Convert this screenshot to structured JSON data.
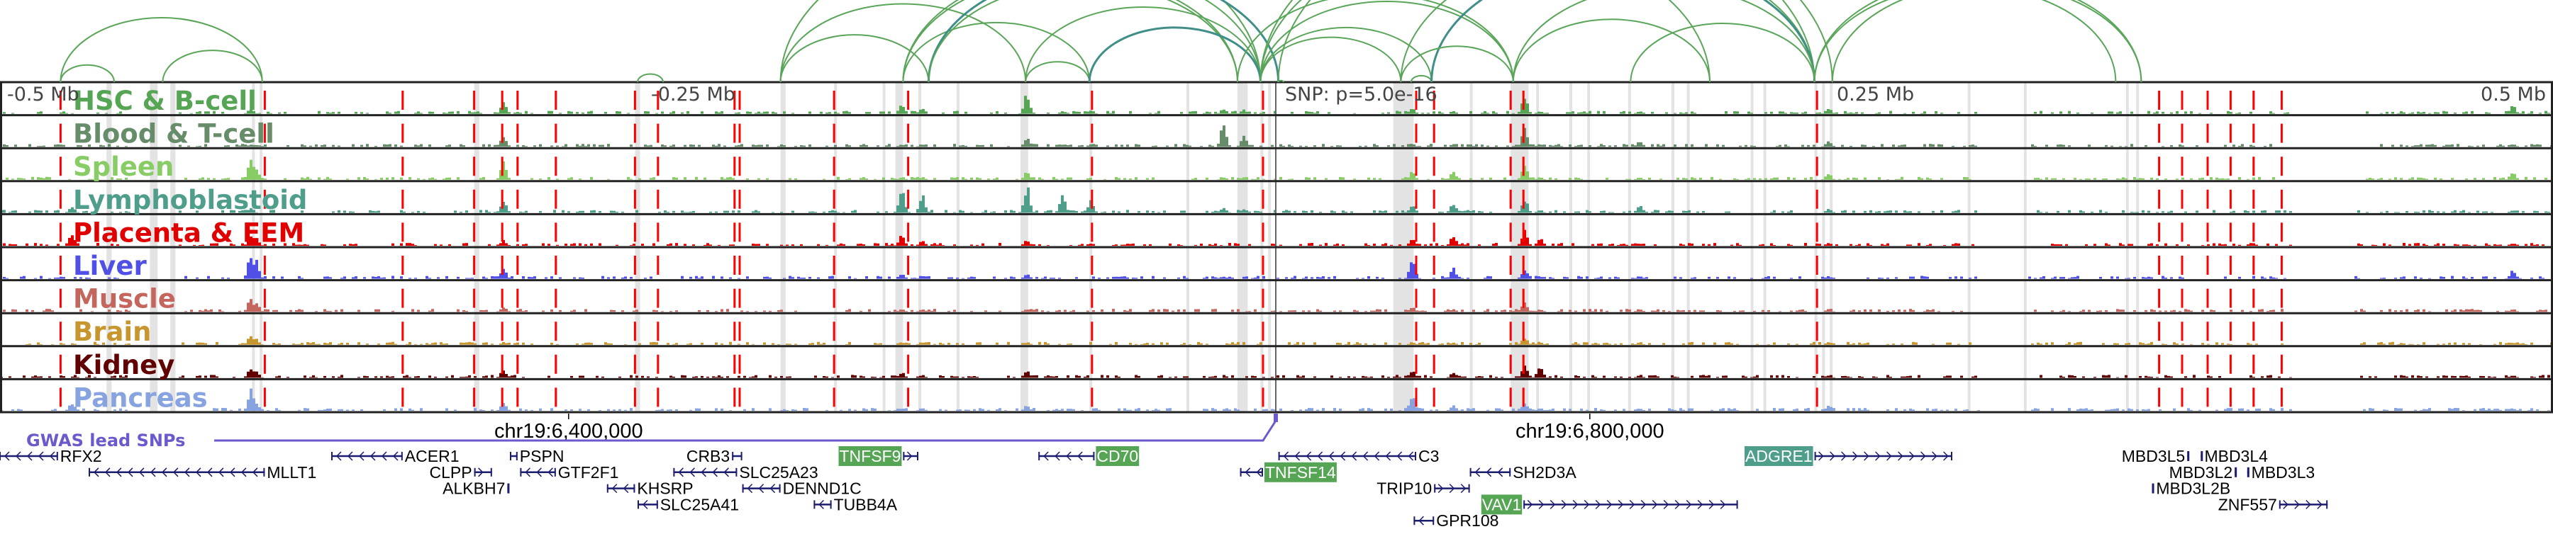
{
  "axis": {
    "left_label": "-0.5 Mb",
    "left_mid_label": "-0.25 Mb",
    "snp_label": "SNP: p=5.0e-16",
    "right_mid_label": "0.25 Mb",
    "right_label": "0.5 Mb"
  },
  "coordinates": [
    {
      "label": "chr19:6,400,000",
      "kb": -277
    },
    {
      "label": "chr19:6,800,000",
      "kb": 123
    }
  ],
  "gwas": {
    "label": "GWAS lead SNPs",
    "color": "#6a5acd",
    "snp_kb": 0
  },
  "tracks": [
    {
      "label": "HSC & B-cell",
      "color": "#55a555"
    },
    {
      "label": "Blood & T-cell",
      "color": "#678c6a"
    },
    {
      "label": "Spleen",
      "color": "#88cc66"
    },
    {
      "label": "Lymphoblastoid",
      "color": "#4f9e8c"
    },
    {
      "label": "Placenta & EEM",
      "color": "#e00000"
    },
    {
      "label": "Liver",
      "color": "#5050e6"
    },
    {
      "label": "Muscle",
      "color": "#c4665e"
    },
    {
      "label": "Brain",
      "color": "#c8962e"
    },
    {
      "label": "Kidney",
      "color": "#600000"
    },
    {
      "label": "Pancreas",
      "color": "#88a4e0"
    }
  ],
  "peaks": [
    {
      "kb": -472,
      "h": [
        0,
        0,
        0,
        0.25,
        0.5,
        0,
        0,
        0,
        0,
        0.3
      ]
    },
    {
      "kb": -402,
      "h": [
        0.2,
        0.1,
        0.9,
        0.2,
        0.35,
        1.0,
        0.55,
        0.35,
        0.4,
        0.8
      ]
    },
    {
      "kb": -400,
      "h": [
        0,
        0,
        0.5,
        0,
        0.3,
        0.7,
        0.4,
        0.25,
        0.3,
        0.3
      ]
    },
    {
      "kb": -303,
      "h": [
        0.45,
        0.4,
        0.65,
        0.45,
        0.2,
        0.4,
        0.2,
        0.1,
        0.3,
        0.3
      ]
    },
    {
      "kb": -147,
      "h": [
        0.35,
        0.1,
        0.1,
        0.95,
        0.4,
        0.2,
        0.1,
        0.1,
        0.2,
        0.1
      ]
    },
    {
      "kb": -139,
      "h": [
        0.25,
        0.1,
        0.1,
        0.65,
        0.2,
        0.1,
        0.1,
        0.1,
        0.1,
        0.1
      ]
    },
    {
      "kb": -98,
      "h": [
        0.75,
        0.35,
        0.3,
        1.0,
        0.2,
        0.2,
        0.1,
        0.1,
        0.3,
        0.2
      ]
    },
    {
      "kb": -84,
      "h": [
        0.1,
        0.1,
        0,
        0.7,
        0,
        0,
        0,
        0,
        0,
        0
      ]
    },
    {
      "kb": -73,
      "h": [
        0.15,
        0.1,
        0,
        0.45,
        0.1,
        0,
        0,
        0,
        0,
        0
      ]
    },
    {
      "kb": -21,
      "h": [
        0.2,
        0.85,
        0.1,
        0.2,
        0,
        0,
        0,
        0,
        0,
        0
      ]
    },
    {
      "kb": -13,
      "h": [
        0.15,
        0.45,
        0.1,
        0.15,
        0,
        0,
        0,
        0,
        0,
        0
      ]
    },
    {
      "kb": 53,
      "h": [
        0.2,
        0.1,
        0.3,
        0.3,
        0.3,
        0.8,
        0.2,
        0.1,
        0.3,
        0.6
      ]
    },
    {
      "kb": 69,
      "h": [
        0.1,
        0.1,
        0.3,
        0.35,
        0.4,
        0.4,
        0.1,
        0.1,
        0.2,
        0.2
      ]
    },
    {
      "kb": 97,
      "h": [
        0.65,
        0.75,
        0.65,
        0.55,
        0.6,
        0.4,
        0.35,
        0.3,
        0.55,
        0.3
      ]
    },
    {
      "kb": 103,
      "h": [
        0.1,
        0.1,
        0.1,
        0.1,
        0.3,
        0.1,
        0.1,
        0.1,
        0.5,
        0.1
      ]
    },
    {
      "kb": 142,
      "h": [
        0.1,
        0.2,
        0.1,
        0.3,
        0.1,
        0.1,
        0.1,
        0.1,
        0.1,
        0.1
      ]
    },
    {
      "kb": 216,
      "h": [
        0.2,
        0.2,
        0.25,
        0.15,
        0.1,
        0.1,
        0.1,
        0.1,
        0.1,
        0.2
      ]
    },
    {
      "kb": 484,
      "h": [
        0.3,
        0.1,
        0.3,
        0.1,
        0.1,
        0.3,
        0.1,
        0.1,
        0.1,
        0.1
      ]
    }
  ],
  "red_lines_kb": [
    -476,
    -396,
    -342,
    -314,
    -303,
    -297,
    -282,
    -251,
    -242,
    -212,
    -210,
    -173,
    -144,
    -72,
    -5,
    55,
    62,
    92,
    97,
    212,
    346,
    355,
    365,
    374,
    383,
    394
  ],
  "gray_bands_kb": [
    [
      -458,
      -456
    ],
    [
      -441,
      -438
    ],
    [
      -433,
      -431
    ],
    [
      -401,
      -400
    ],
    [
      -398,
      -397
    ],
    [
      -314,
      -312
    ],
    [
      -251,
      -249
    ],
    [
      -194,
      -192
    ],
    [
      -173,
      -172
    ],
    [
      -154,
      -153
    ],
    [
      -149,
      -146
    ],
    [
      -140,
      -139
    ],
    [
      -125,
      -124
    ],
    [
      -100,
      -97
    ],
    [
      -73,
      -72
    ],
    [
      -35,
      -34
    ],
    [
      -15,
      -11
    ],
    [
      -6,
      -5
    ],
    [
      -3,
      -2
    ],
    [
      46,
      54
    ],
    [
      76,
      77
    ],
    [
      92,
      99
    ],
    [
      102,
      103
    ],
    [
      115,
      116
    ],
    [
      122,
      123
    ],
    [
      138,
      139
    ],
    [
      155,
      156
    ],
    [
      161,
      162
    ],
    [
      186,
      187
    ],
    [
      191,
      192
    ],
    [
      211,
      212
    ],
    [
      214,
      215
    ],
    [
      217,
      218
    ],
    [
      271,
      272
    ],
    [
      293,
      294
    ],
    [
      333,
      334
    ],
    [
      337,
      338
    ]
  ],
  "arcs": [
    {
      "a": -476,
      "b": -397,
      "teal": false
    },
    {
      "a": -476,
      "b": -455,
      "teal": false
    },
    {
      "a": -436,
      "b": -397,
      "teal": false
    },
    {
      "a": -250,
      "b": -240,
      "teal": false
    },
    {
      "a": -194,
      "b": -98,
      "teal": false
    },
    {
      "a": -194,
      "b": -136,
      "teal": false
    },
    {
      "a": -194,
      "b": -6,
      "teal": false
    },
    {
      "a": -146,
      "b": -73,
      "teal": false
    },
    {
      "a": -146,
      "b": -6,
      "teal": false
    },
    {
      "a": -146,
      "b": -15,
      "teal": false
    },
    {
      "a": -136,
      "b": 1,
      "teal": true
    },
    {
      "a": -136,
      "b": -15,
      "teal": false
    },
    {
      "a": -98,
      "b": -6,
      "teal": false
    },
    {
      "a": -98,
      "b": -73,
      "teal": false
    },
    {
      "a": -73,
      "b": -6,
      "teal": true
    },
    {
      "a": -15,
      "b": 93,
      "teal": false
    },
    {
      "a": -6,
      "b": 93,
      "teal": false
    },
    {
      "a": -6,
      "b": 61,
      "teal": false
    },
    {
      "a": -6,
      "b": 49,
      "teal": false
    },
    {
      "a": 1,
      "b": 3,
      "teal": false
    },
    {
      "a": 1,
      "b": 218,
      "teal": false
    },
    {
      "a": -6,
      "b": 211,
      "teal": false
    },
    {
      "a": -6,
      "b": 170,
      "teal": false
    },
    {
      "a": 49,
      "b": 211,
      "teal": false
    },
    {
      "a": 53,
      "b": 61,
      "teal": false
    },
    {
      "a": 61,
      "b": 211,
      "teal": true
    },
    {
      "a": 49,
      "b": 93,
      "teal": false
    },
    {
      "a": 93,
      "b": 211,
      "teal": false
    },
    {
      "a": 93,
      "b": 170,
      "teal": false
    },
    {
      "a": 139,
      "b": 211,
      "teal": false
    },
    {
      "a": 211,
      "b": 329,
      "teal": false
    },
    {
      "a": 211,
      "b": 339,
      "teal": false
    },
    {
      "a": 218,
      "b": 339,
      "teal": false
    }
  ],
  "genes": [
    {
      "name": "RFX2",
      "start": -500,
      "end": -477,
      "strand": "-",
      "row": 1,
      "label_side": "right",
      "highlight": ""
    },
    {
      "name": "MLLT1",
      "start": -465,
      "end": -396,
      "strand": "-",
      "row": 2,
      "label_side": "right",
      "highlight": ""
    },
    {
      "name": "ACER1",
      "start": -370,
      "end": -342,
      "strand": "-",
      "row": 1,
      "label_side": "right",
      "highlight": ""
    },
    {
      "name": "CLPP",
      "start": -314,
      "end": -307,
      "strand": "+",
      "row": 2,
      "label_side": "left",
      "highlight": ""
    },
    {
      "name": "ALKBH7",
      "start": -301,
      "end": -300.5,
      "strand": "-",
      "row": 3,
      "label_side": "left",
      "highlight": ""
    },
    {
      "name": "PSPN",
      "start": -300,
      "end": -297,
      "strand": "-",
      "row": 1,
      "label_side": "right",
      "highlight": ""
    },
    {
      "name": "GTF2F1",
      "start": -296,
      "end": -282,
      "strand": "-",
      "row": 2,
      "label_side": "right",
      "highlight": ""
    },
    {
      "name": "KHSRP",
      "start": -262,
      "end": -251,
      "strand": "-",
      "row": 3,
      "label_side": "right",
      "highlight": ""
    },
    {
      "name": "SLC25A41",
      "start": -250,
      "end": -242,
      "strand": "-",
      "row": 4,
      "label_side": "right",
      "highlight": ""
    },
    {
      "name": "CRB3",
      "start": -213,
      "end": -209,
      "strand": "+",
      "row": 1,
      "label_side": "left",
      "highlight": ""
    },
    {
      "name": "SLC25A23",
      "start": -236,
      "end": -211,
      "strand": "-",
      "row": 2,
      "label_side": "right",
      "highlight": ""
    },
    {
      "name": "DENND1C",
      "start": -209,
      "end": -194,
      "strand": "-",
      "row": 3,
      "label_side": "right",
      "highlight": ""
    },
    {
      "name": "TUBB4A",
      "start": -181,
      "end": -174,
      "strand": "-",
      "row": 4,
      "label_side": "right",
      "highlight": ""
    },
    {
      "name": "TNFSF9",
      "start": -146,
      "end": -140,
      "strand": "+",
      "row": 1,
      "label_side": "left",
      "highlight": "#55a555"
    },
    {
      "name": "CD70",
      "start": -93,
      "end": -71,
      "strand": "-",
      "row": 1,
      "label_side": "right",
      "highlight": "#55a555"
    },
    {
      "name": "C3",
      "start": 1,
      "end": 55,
      "strand": "-",
      "row": 1,
      "label_side": "right",
      "highlight": ""
    },
    {
      "name": "TNFSF14",
      "start": -14,
      "end": -5,
      "strand": "-",
      "row": 2,
      "label_side": "right",
      "highlight": "#55a555"
    },
    {
      "name": "SH2D3A",
      "start": 76,
      "end": 92,
      "strand": "-",
      "row": 2,
      "label_side": "right",
      "highlight": ""
    },
    {
      "name": "TRIP10",
      "start": 62,
      "end": 76,
      "strand": "+",
      "row": 3,
      "label_side": "left",
      "highlight": ""
    },
    {
      "name": "VAV1",
      "start": 97,
      "end": 181,
      "strand": "+",
      "row": 4,
      "label_side": "left",
      "highlight": "#55a555"
    },
    {
      "name": "GPR108",
      "start": 54,
      "end": 62,
      "strand": "-",
      "row": 5,
      "label_side": "right",
      "highlight": ""
    },
    {
      "name": "ADGRE1",
      "start": 211,
      "end": 265,
      "strand": "+",
      "row": 1,
      "label_side": "left",
      "highlight": "#4f9e8c"
    },
    {
      "name": "MBD3L5",
      "start": 357,
      "end": 357.6,
      "strand": "-",
      "row": 1,
      "label_side": "left",
      "highlight": ""
    },
    {
      "name": "MBD3L4",
      "start": 362.3,
      "end": 362.9,
      "strand": "-",
      "row": 1,
      "label_side": "right",
      "highlight": ""
    },
    {
      "name": "MBD3L2",
      "start": 375.6,
      "end": 376.2,
      "strand": "-",
      "row": 2,
      "label_side": "left",
      "highlight": ""
    },
    {
      "name": "MBD3L3",
      "start": 380.5,
      "end": 381.3,
      "strand": "-",
      "row": 2,
      "label_side": "right",
      "highlight": ""
    },
    {
      "name": "MBD3L2B",
      "start": 343.2,
      "end": 344,
      "strand": "-",
      "row": 3,
      "label_side": "right",
      "highlight": ""
    },
    {
      "name": "ZNF557",
      "start": 393,
      "end": 412,
      "strand": "+",
      "row": 4,
      "label_side": "left",
      "highlight": ""
    }
  ],
  "colors": {
    "red_line": "#ff0000",
    "gray_band": "#e3e3e3",
    "arc": "#5aa55a",
    "arc_teal": "#3f8f88",
    "gene": "#1c1c70"
  }
}
